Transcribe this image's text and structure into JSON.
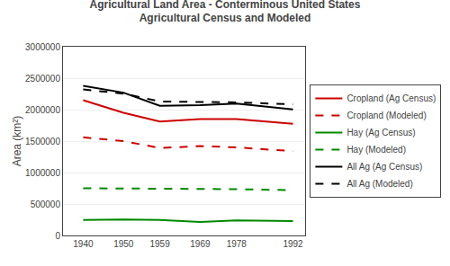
{
  "chart_data": {
    "type": "line",
    "title": "Agricultural Land Area - Conterminous United States",
    "subtitle": "Agricultural Census and Modeled",
    "y_label": "Area (km²)",
    "x": [
      1940,
      1950,
      1959,
      1969,
      1978,
      1992
    ],
    "xlim": [
      1935,
      1995
    ],
    "xticks": [
      1940,
      1950,
      1959,
      1969,
      1978,
      1992
    ],
    "ylim": [
      0,
      3000000
    ],
    "yticks": [
      0,
      500000,
      1000000,
      1500000,
      2000000,
      2500000,
      3000000
    ],
    "grid": "y",
    "legend": "right",
    "series": [
      {
        "name": "Cropland (Ag Census)",
        "color": "#cc0000",
        "line_style": "solid",
        "values": [
          2150000,
          1950000,
          1810000,
          1850000,
          1850000,
          1775000
        ]
      },
      {
        "name": "Cropland (Modeled)",
        "color": "#cc0000",
        "line_style": "dashed",
        "values": [
          1560000,
          1500000,
          1390000,
          1420000,
          1400000,
          1340000
        ]
      },
      {
        "name": "Hay (Ag Census)",
        "color": "#008800",
        "line_style": "solid",
        "values": [
          245000,
          255000,
          245000,
          215000,
          240000,
          230000
        ]
      },
      {
        "name": "Hay (Modeled)",
        "color": "#008800",
        "line_style": "dashed",
        "values": [
          750000,
          750000,
          750000,
          740000,
          735000,
          720000
        ]
      },
      {
        "name": "All Ag (Ag Census)",
        "color": "#000000",
        "line_style": "solid",
        "values": [
          2380000,
          2270000,
          2060000,
          2070000,
          2095000,
          2005000
        ]
      },
      {
        "name": "All Ag (Modeled)",
        "color": "#000000",
        "line_style": "dashed",
        "values": [
          2320000,
          2255000,
          2130000,
          2120000,
          2115000,
          2085000
        ]
      }
    ]
  }
}
